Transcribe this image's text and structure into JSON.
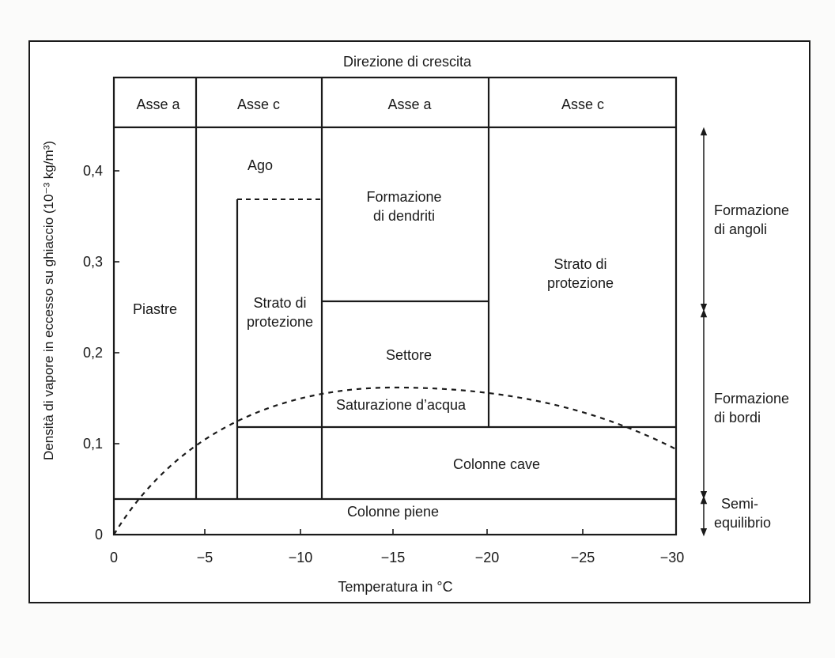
{
  "header": {
    "title": "Direzione di crescita",
    "axes": [
      "Asse a",
      "Asse c",
      "Asse a",
      "Asse c"
    ]
  },
  "axes": {
    "xlabel": "Temperatura in °C",
    "ylabel": "Densità di vapore in eccesso su ghiaccio (10⁻³ kg/m³)",
    "x_ticks": [
      "0",
      "−5",
      "−10",
      "−15",
      "−20",
      "−25",
      "−30"
    ],
    "y_ticks": [
      "0",
      "0,1",
      "0,2",
      "0,3",
      "0,4"
    ]
  },
  "regions": {
    "piastre": "Piastre",
    "ago": "Ago",
    "strato_c_1": "Strato di",
    "strato_c_2": "protezione",
    "dendriti_1": "Formazione",
    "dendriti_2": "di dendriti",
    "settore": "Settore",
    "strato_a_1": "Strato di",
    "strato_a_2": "protezione",
    "colonne_cave": "Colonne cave",
    "colonne_piene": "Colonne piene",
    "saturazione": "Saturazione d’acqua"
  },
  "side_labels": {
    "angoli_1": "Formazione",
    "angoli_2": "di angoli",
    "bordi_1": "Formazione",
    "bordi_2": "di bordi",
    "semi_1": "Semi-",
    "semi_2": "equilibrio"
  }
}
